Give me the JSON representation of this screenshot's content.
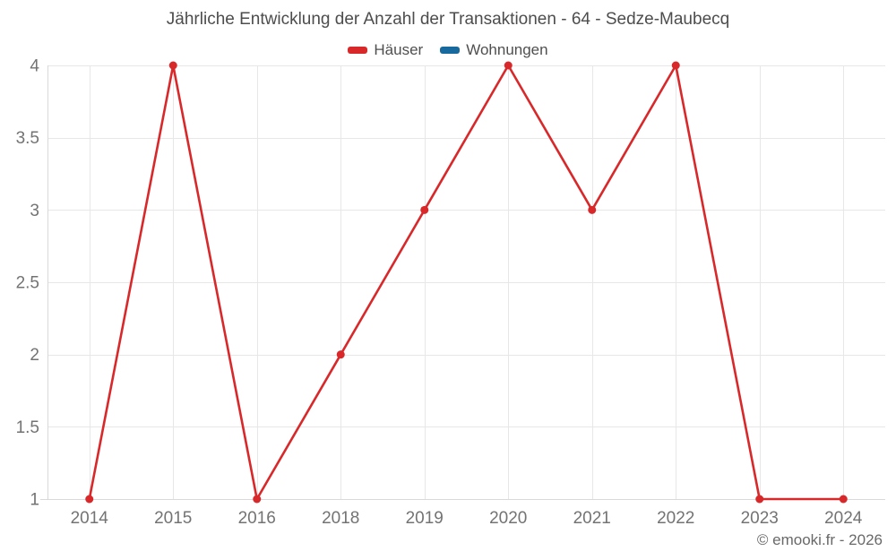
{
  "title": "Jährliche Entwicklung der Anzahl der Transaktionen - 64 - Sedze-Maubecq",
  "legend": {
    "items": [
      {
        "label": "Häuser",
        "color": "#d9282a"
      },
      {
        "label": "Wohnungen",
        "color": "#17699e"
      }
    ]
  },
  "footer": "© emooki.fr - 2026",
  "chart_data": {
    "type": "line",
    "title": "Jährliche Entwicklung der Anzahl der Transaktionen - 64 - Sedze-Maubecq",
    "categories": [
      "2014",
      "2015",
      "2016",
      "2018",
      "2019",
      "2020",
      "2021",
      "2022",
      "2023",
      "2024"
    ],
    "series": [
      {
        "name": "Häuser",
        "color": "#d9282a",
        "values": [
          1,
          4,
          1,
          2,
          3,
          4,
          3,
          4,
          1,
          1
        ]
      },
      {
        "name": "Wohnungen",
        "color": "#17699e",
        "values": []
      }
    ],
    "xlabel": "",
    "ylabel": "",
    "ylim": [
      1,
      4
    ],
    "yticks": [
      1,
      1.5,
      2,
      2.5,
      3,
      3.5,
      4
    ],
    "grid": true,
    "legend_position": "top",
    "colors": {
      "grid": "#e7e7e7",
      "axis": "#d9d9d9",
      "tick_text": "#737373"
    }
  }
}
